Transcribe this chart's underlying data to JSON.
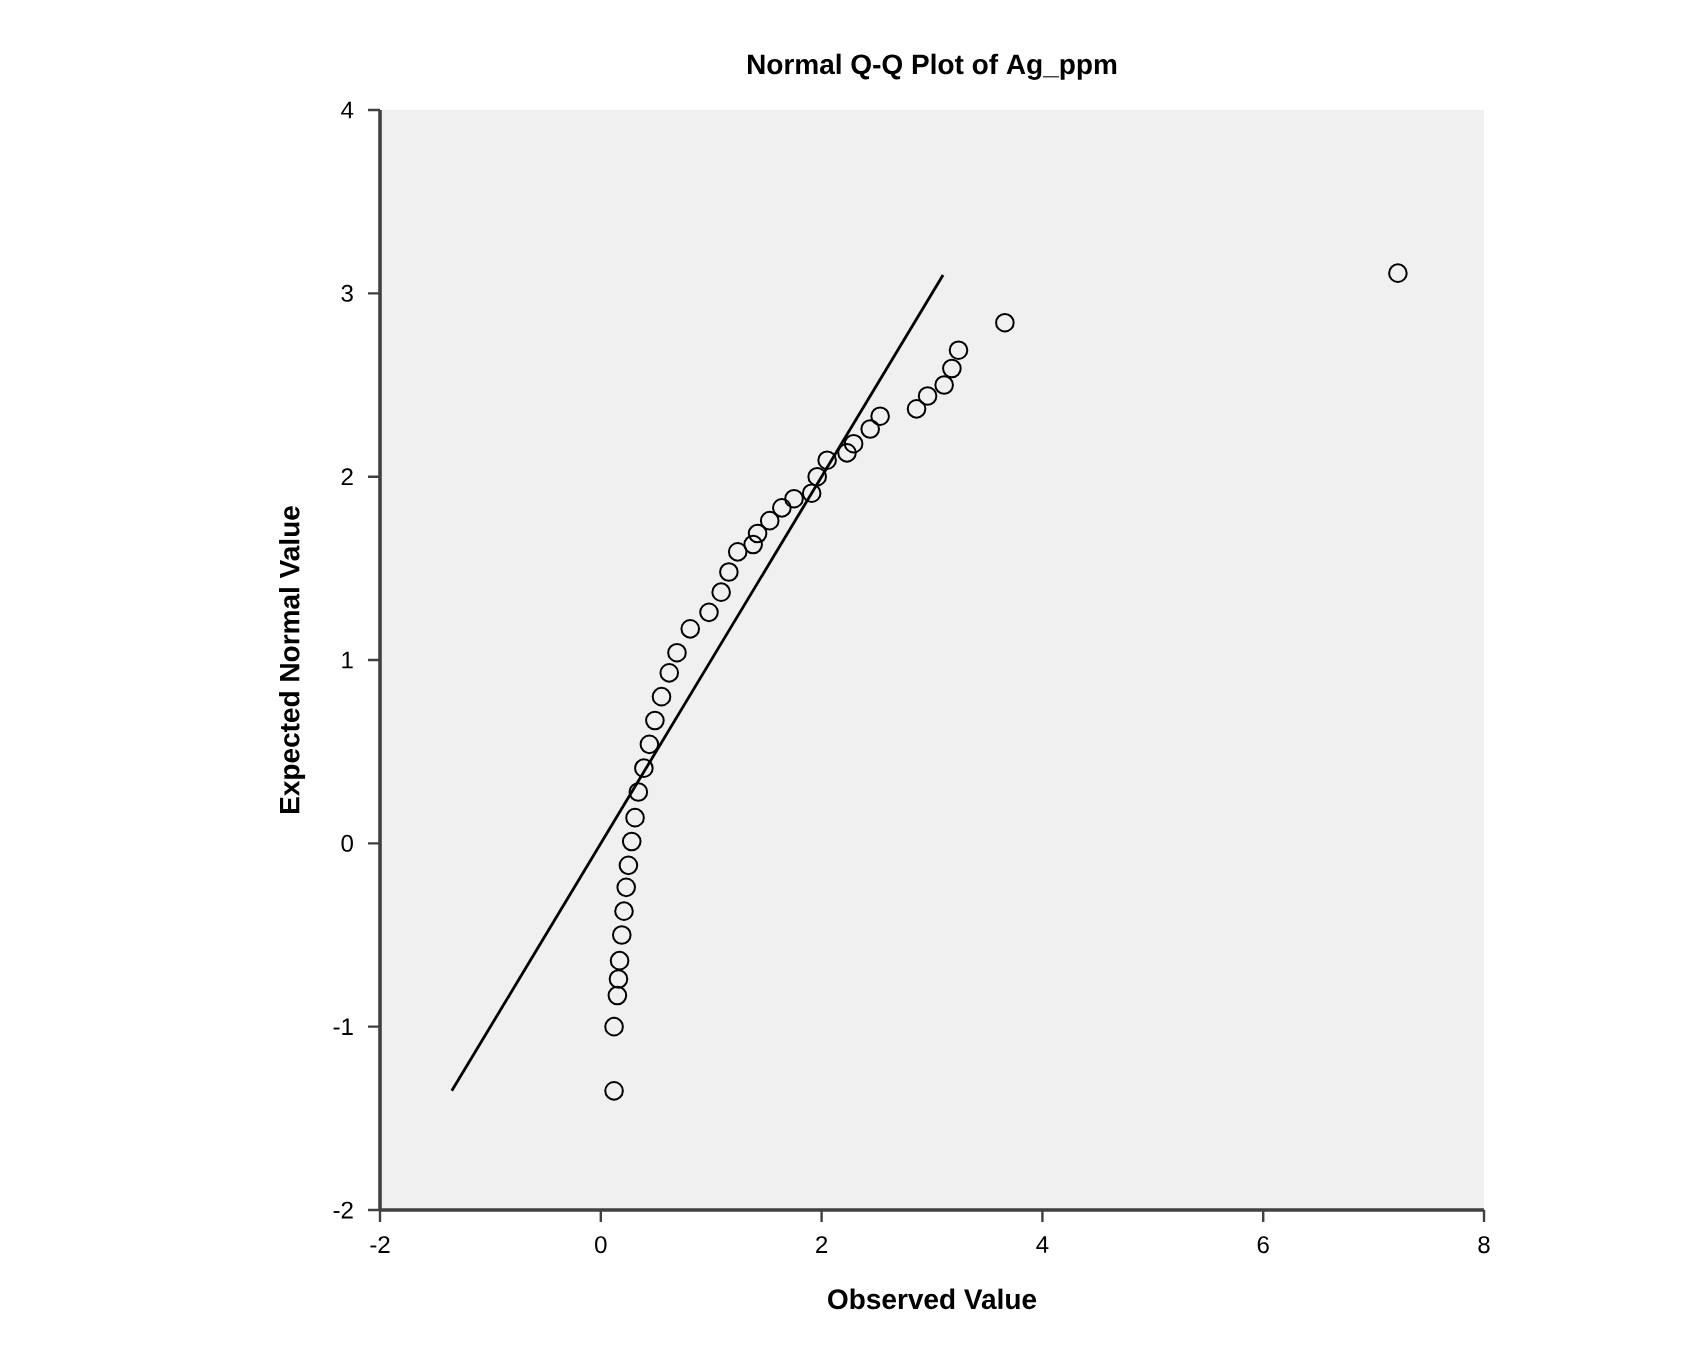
{
  "chart_data": {
    "type": "scatter",
    "title": "Normal Q-Q Plot of Ag_ppm",
    "xlabel": "Observed Value",
    "ylabel": "Expected Normal Value",
    "xlim": [
      -2,
      8
    ],
    "ylim": [
      -2,
      4
    ],
    "xticks": [
      -2,
      0,
      2,
      4,
      6,
      8
    ],
    "yticks": [
      -2,
      -1,
      0,
      1,
      2,
      3,
      4
    ],
    "grid": false,
    "marker": "circle",
    "series": [
      {
        "color": "#000000",
        "x": [
          0.12,
          0.12,
          0.15,
          0.16,
          0.17,
          0.19,
          0.21,
          0.23,
          0.25,
          0.28,
          0.31,
          0.34,
          0.39,
          0.44,
          0.49,
          0.55,
          0.62,
          0.69,
          0.81,
          0.98,
          1.09,
          1.16,
          1.24,
          1.38,
          1.42,
          1.53,
          1.64,
          1.75,
          1.91,
          1.96,
          2.05,
          2.23,
          2.29,
          2.44,
          2.53,
          2.86,
          2.96,
          3.11,
          3.18,
          3.24,
          3.66,
          7.22
        ],
        "values": [
          -1.35,
          -1.0,
          -0.83,
          -0.74,
          -0.64,
          -0.5,
          -0.37,
          -0.24,
          -0.12,
          0.01,
          0.14,
          0.28,
          0.41,
          0.54,
          0.67,
          0.8,
          0.93,
          1.04,
          1.17,
          1.26,
          1.37,
          1.48,
          1.59,
          1.63,
          1.69,
          1.76,
          1.83,
          1.88,
          1.91,
          2.0,
          2.09,
          2.13,
          2.18,
          2.26,
          2.33,
          2.37,
          2.44,
          2.5,
          2.59,
          2.69,
          2.84,
          3.11
        ]
      },
      {
        "type": "line",
        "color": "#000000",
        "marker": "none",
        "line_style": "solid",
        "x": [
          -1.35,
          3.1
        ],
        "values": [
          -1.35,
          3.1
        ]
      }
    ]
  }
}
